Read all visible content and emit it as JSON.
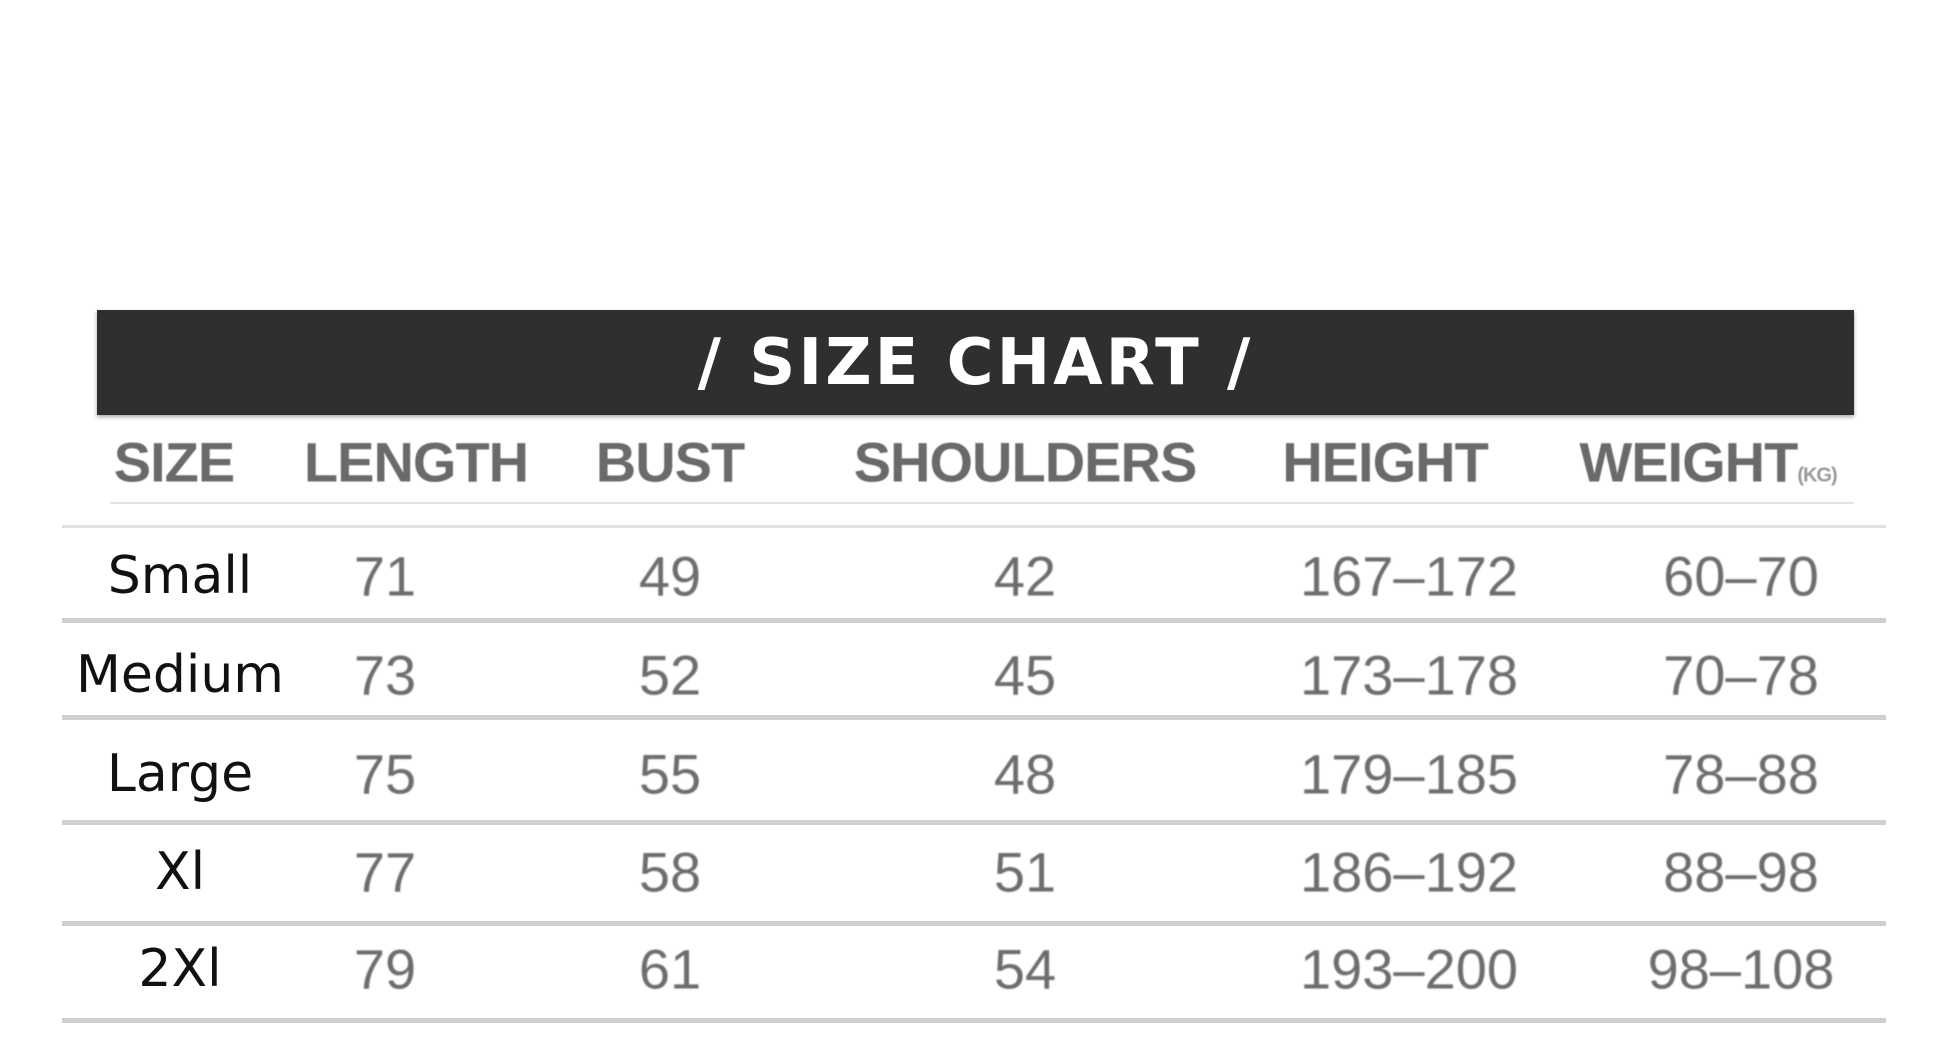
{
  "title": "/ SIZE CHART /",
  "headers": {
    "size": "SIZE",
    "length": "LENGTH",
    "bust": "BUST",
    "shoulders": "SHOULDERS",
    "height": "HEIGHT",
    "weight": "WEIGHT",
    "weight_unit": "(KG)"
  },
  "rows": [
    {
      "size": "Small",
      "length": "71",
      "bust": "49",
      "shoulders": "42",
      "height": "167–172",
      "weight": "60–70"
    },
    {
      "size": "Medium",
      "length": "73",
      "bust": "52",
      "shoulders": "45",
      "height": "173–178",
      "weight": "70–78"
    },
    {
      "size": "Large",
      "length": "75",
      "bust": "55",
      "shoulders": "48",
      "height": "179–185",
      "weight": "78–88"
    },
    {
      "size": "Xl",
      "length": "77",
      "bust": "58",
      "shoulders": "51",
      "height": "186–192",
      "weight": "88–98"
    },
    {
      "size": "2Xl",
      "length": "79",
      "bust": "61",
      "shoulders": "54",
      "height": "193–200",
      "weight": "98–108"
    }
  ]
}
